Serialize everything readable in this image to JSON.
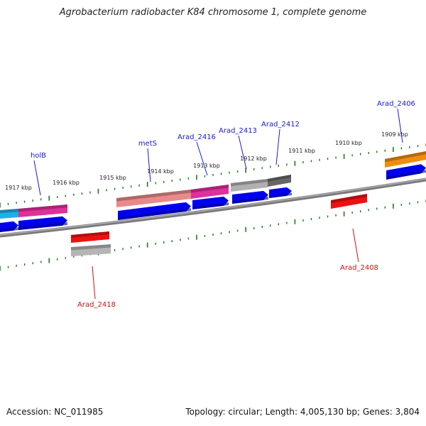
{
  "title": "Agrobacterium radiobacter K84 chromosome 1, complete genome",
  "footer": {
    "accession": "Accession: NC_011985",
    "summary": "Topology: circular; Length: 4,005,130 bp; Genes: 3,804"
  },
  "colors": {
    "backbone": "#7a7a7a",
    "tick": "#1e7a1e",
    "cds": "#0000ee",
    "gene_label_forward": "#1a1acc",
    "gene_label_reverse": "#cc1111"
  },
  "scale_labels": [
    "1917 kbp",
    "1916 kbp",
    "1915 kbp",
    "1914 kbp",
    "1913 kbp",
    "1912 kbp",
    "1911 kbp",
    "1910 kbp",
    "1909 kbp"
  ],
  "gene_labels": [
    {
      "text": "holB",
      "strand": "forward"
    },
    {
      "text": "metS",
      "strand": "forward"
    },
    {
      "text": "Arad_2416",
      "strand": "forward"
    },
    {
      "text": "Arad_2413",
      "strand": "forward"
    },
    {
      "text": "Arad_2412",
      "strand": "forward"
    },
    {
      "text": "Arad_2406",
      "strand": "forward"
    },
    {
      "text": "Arad_2418",
      "strand": "reverse"
    },
    {
      "text": "Arad_2408",
      "strand": "reverse"
    }
  ],
  "features": [
    {
      "name": "holB-gene",
      "strand": "forward",
      "kind": "gene",
      "color": "#e0309a"
    },
    {
      "name": "left-gene",
      "strand": "forward",
      "kind": "gene",
      "color": "#1fb0e8"
    },
    {
      "name": "metS-gene",
      "strand": "forward",
      "kind": "gene",
      "color": "#e98a8a"
    },
    {
      "name": "arad2416-gene",
      "strand": "forward",
      "kind": "gene",
      "color": "#e0309a"
    },
    {
      "name": "arad2413-gene",
      "strand": "forward",
      "kind": "gene",
      "color": "#b0b0b0"
    },
    {
      "name": "arad2412-gene",
      "strand": "forward",
      "kind": "gene",
      "color": "#666666"
    },
    {
      "name": "arad2406-gene",
      "strand": "forward",
      "kind": "gene",
      "color": "#f08c10"
    },
    {
      "name": "arad2418-gene",
      "strand": "reverse",
      "kind": "gene",
      "color": "#ee1111"
    },
    {
      "name": "arad2418-rna",
      "strand": "reverse",
      "kind": "gene",
      "color": "#b5b5b5"
    },
    {
      "name": "arad2408-gene",
      "strand": "reverse",
      "kind": "gene",
      "color": "#ee1111"
    }
  ]
}
